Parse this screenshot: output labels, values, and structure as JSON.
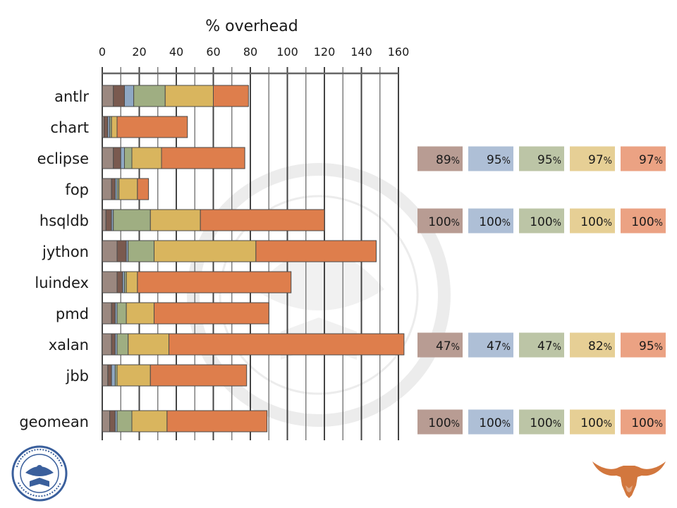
{
  "chart_data": {
    "type": "bar",
    "stacked": true,
    "orientation": "horizontal",
    "title": "% overhead",
    "xlim": [
      0,
      160
    ],
    "xticks": [
      "0",
      "20",
      "40",
      "60",
      "80",
      "100",
      "120",
      "140",
      "160"
    ],
    "grid": true,
    "categories": [
      "antlr",
      "chart",
      "eclipse",
      "fop",
      "hsqldb",
      "jython",
      "luindex",
      "pmd",
      "xalan",
      "jbb",
      "geomean"
    ],
    "series": [
      {
        "color": "#9b8880",
        "values": [
          6,
          1,
          6,
          5,
          2,
          8,
          8,
          5,
          5,
          3,
          4
        ]
      },
      {
        "color": "#7a5a4f",
        "values": [
          6,
          2,
          4,
          2,
          3,
          5,
          3,
          2,
          2,
          2,
          3
        ]
      },
      {
        "color": "#8fa8c4",
        "values": [
          5,
          1,
          2,
          1,
          1,
          1,
          1,
          1,
          1,
          2,
          1
        ]
      },
      {
        "color": "#9fae82",
        "values": [
          17,
          1,
          4,
          1,
          20,
          14,
          1,
          5,
          6,
          1,
          8
        ]
      },
      {
        "color": "#d9b55e",
        "values": [
          26,
          3,
          16,
          10,
          27,
          55,
          6,
          15,
          22,
          18,
          19
        ]
      },
      {
        "color": "#de7e4c",
        "values": [
          19,
          38,
          45,
          6,
          67,
          65,
          83,
          62,
          127,
          52,
          54
        ]
      }
    ]
  },
  "side_panels": [
    {
      "row": "eclipse",
      "cells": [
        "89",
        "95",
        "95",
        "97",
        "97"
      ]
    },
    {
      "row": "hsqldb",
      "cells": [
        "100",
        "100",
        "100",
        "100",
        "100"
      ]
    },
    {
      "row": "xalan",
      "cells": [
        "47",
        "47",
        "47",
        "82",
        "95"
      ]
    },
    {
      "row": "geomean",
      "cells": [
        "100",
        "100",
        "100",
        "100",
        "100"
      ]
    }
  ],
  "percent_sign": "%",
  "panel_colors": [
    "#b89c93",
    "#aebfd6",
    "#bcc5a6",
    "#e6cf95",
    "#eba283"
  ],
  "colors": {
    "grid": "#555555",
    "bar_outline": "#4a4a4a",
    "watermark": "#ececec",
    "longhorn": "#d2773e",
    "seal_blue": "#3a5f9c"
  },
  "logos": {
    "seal_motto": "SIGILLUM UNIVERSITATIS TEXENSIS · DISCIPLINA PRAESIDIUM CIVITATIS",
    "seal_year": "1883",
    "watermark_motto": "UNIVERSITATIS TEXENSIS · SIGILLUM · PAX ET LUX"
  }
}
